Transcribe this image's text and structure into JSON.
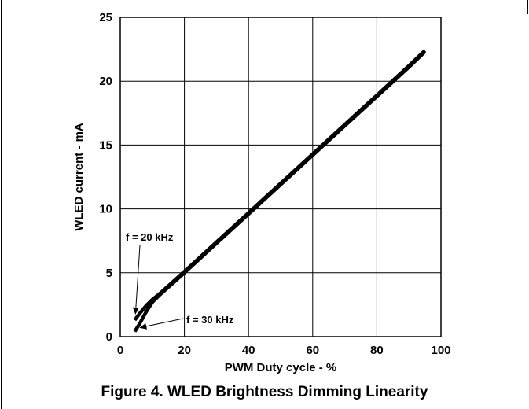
{
  "chart_data": {
    "type": "line",
    "xlabel": "PWM Duty cycle - %",
    "ylabel": "WLED current - mA",
    "xlim": [
      0,
      100
    ],
    "ylim": [
      0,
      25
    ],
    "x_ticks": [
      "0",
      "20",
      "40",
      "60",
      "80",
      "100"
    ],
    "y_ticks": [
      "0",
      "5",
      "10",
      "15",
      "20",
      "25"
    ],
    "grid": true,
    "legend": "none",
    "line_color": "#000000",
    "series": [
      {
        "name": "f = 20 kHz",
        "x": [
          4.5,
          6,
          8,
          10,
          12,
          16,
          20,
          30,
          40,
          50,
          60,
          70,
          80,
          90,
          95
        ],
        "y": [
          1.3,
          1.8,
          2.4,
          2.9,
          3.3,
          4.2,
          5.1,
          7.4,
          9.7,
          12.0,
          14.3,
          16.6,
          18.9,
          21.2,
          22.4
        ]
      },
      {
        "name": "f = 30 kHz",
        "x": [
          4.5,
          6,
          8,
          10,
          12,
          16,
          20,
          30,
          40,
          50,
          60,
          70,
          80,
          90,
          95
        ],
        "y": [
          0.4,
          1.0,
          1.9,
          2.7,
          3.2,
          4.1,
          5.0,
          7.3,
          9.6,
          11.9,
          14.2,
          16.5,
          18.8,
          21.1,
          22.3
        ]
      }
    ],
    "annotations": [
      {
        "text": "f = 20 kHz",
        "x": 4.5,
        "y": 1.3
      },
      {
        "text": "f = 30 kHz",
        "x": 4.5,
        "y": 0.4
      }
    ]
  },
  "caption": "Figure 4. WLED Brightness Dimming Linearity"
}
